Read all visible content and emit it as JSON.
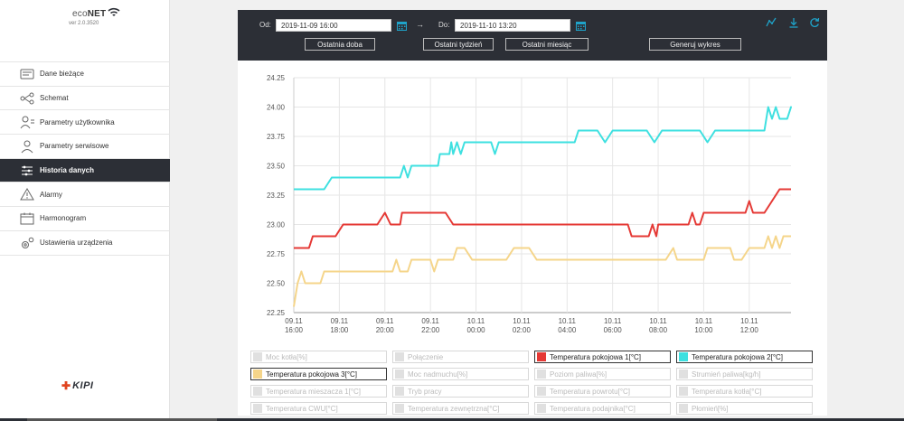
{
  "app": {
    "logo_text_eco": "eco",
    "logo_text_net": "NET",
    "version": "ver 2.0.3520",
    "vendor": "KIPI"
  },
  "sidebar": {
    "items": [
      {
        "label": "Dane bieżące",
        "icon": "current-data-icon",
        "active": false
      },
      {
        "label": "Schemat",
        "icon": "schema-icon",
        "active": false
      },
      {
        "label": "Parametry użytkownika",
        "icon": "user-params-icon",
        "active": false
      },
      {
        "label": "Parametry serwisowe",
        "icon": "service-params-icon",
        "active": false
      },
      {
        "label": "Historia danych",
        "icon": "history-icon",
        "active": true
      },
      {
        "label": "Alarmy",
        "icon": "alarm-icon",
        "active": false
      },
      {
        "label": "Harmonogram",
        "icon": "schedule-icon",
        "active": false
      },
      {
        "label": "Ustawienia urządzenia",
        "icon": "device-settings-icon",
        "active": false
      }
    ]
  },
  "toolbar": {
    "from_label": "Od:",
    "from_value": "2019-11-09 16:00",
    "arrow": "→",
    "to_label": "Do:",
    "to_value": "2019-11-10 13:20",
    "btn_last_day": "Ostatnia doba",
    "btn_last_week": "Ostatni tydzień",
    "btn_last_month": "Ostatni miesiąc",
    "btn_generate": "Generuj wykres",
    "icons": [
      "chart-line-icon",
      "download-icon",
      "refresh-icon"
    ]
  },
  "chart_data": {
    "type": "line",
    "ylim": [
      22.25,
      24.25
    ],
    "yticks": [
      "22.25",
      "22.50",
      "22.75",
      "23.00",
      "23.25",
      "23.50",
      "23.75",
      "24.00",
      "24.25"
    ],
    "xlim": [
      0,
      1310
    ],
    "xticks": [
      {
        "x": 0,
        "l1": "09.11",
        "l2": "16:00"
      },
      {
        "x": 120,
        "l1": "09.11",
        "l2": "18:00"
      },
      {
        "x": 240,
        "l1": "09.11",
        "l2": "20:00"
      },
      {
        "x": 360,
        "l1": "09.11",
        "l2": "22:00"
      },
      {
        "x": 480,
        "l1": "10.11",
        "l2": "00:00"
      },
      {
        "x": 600,
        "l1": "10.11",
        "l2": "02:00"
      },
      {
        "x": 720,
        "l1": "10.11",
        "l2": "04:00"
      },
      {
        "x": 840,
        "l1": "10.11",
        "l2": "06:00"
      },
      {
        "x": 960,
        "l1": "10.11",
        "l2": "08:00"
      },
      {
        "x": 1080,
        "l1": "10.11",
        "l2": "10:00"
      },
      {
        "x": 1200,
        "l1": "10.11",
        "l2": "12:00"
      }
    ],
    "grid": true,
    "series": [
      {
        "name": "Temperatura pokojowa 1[°C]",
        "color": "#e53935",
        "points": [
          [
            0,
            22.8
          ],
          [
            40,
            22.8
          ],
          [
            50,
            22.9
          ],
          [
            110,
            22.9
          ],
          [
            130,
            23.0
          ],
          [
            220,
            23.0
          ],
          [
            240,
            23.1
          ],
          [
            255,
            23.0
          ],
          [
            280,
            23.0
          ],
          [
            285,
            23.1
          ],
          [
            400,
            23.1
          ],
          [
            420,
            23.0
          ],
          [
            880,
            23.0
          ],
          [
            890,
            22.9
          ],
          [
            935,
            22.9
          ],
          [
            945,
            23.0
          ],
          [
            955,
            22.9
          ],
          [
            960,
            23.0
          ],
          [
            1040,
            23.0
          ],
          [
            1050,
            23.1
          ],
          [
            1060,
            23.0
          ],
          [
            1070,
            23.0
          ],
          [
            1080,
            23.1
          ],
          [
            1190,
            23.1
          ],
          [
            1200,
            23.2
          ],
          [
            1210,
            23.1
          ],
          [
            1240,
            23.1
          ],
          [
            1260,
            23.2
          ],
          [
            1280,
            23.3
          ],
          [
            1310,
            23.3
          ]
        ]
      },
      {
        "name": "Temperatura pokojowa 2[°C]",
        "color": "#3ee0e0",
        "points": [
          [
            0,
            23.3
          ],
          [
            80,
            23.3
          ],
          [
            100,
            23.4
          ],
          [
            280,
            23.4
          ],
          [
            290,
            23.5
          ],
          [
            300,
            23.4
          ],
          [
            310,
            23.5
          ],
          [
            380,
            23.5
          ],
          [
            385,
            23.6
          ],
          [
            410,
            23.6
          ],
          [
            415,
            23.7
          ],
          [
            420,
            23.6
          ],
          [
            430,
            23.7
          ],
          [
            440,
            23.6
          ],
          [
            450,
            23.7
          ],
          [
            520,
            23.7
          ],
          [
            530,
            23.6
          ],
          [
            540,
            23.7
          ],
          [
            740,
            23.7
          ],
          [
            750,
            23.8
          ],
          [
            800,
            23.8
          ],
          [
            820,
            23.7
          ],
          [
            840,
            23.8
          ],
          [
            930,
            23.8
          ],
          [
            950,
            23.7
          ],
          [
            970,
            23.8
          ],
          [
            1070,
            23.8
          ],
          [
            1090,
            23.7
          ],
          [
            1110,
            23.8
          ],
          [
            1240,
            23.8
          ],
          [
            1250,
            24.0
          ],
          [
            1260,
            23.9
          ],
          [
            1270,
            24.0
          ],
          [
            1280,
            23.9
          ],
          [
            1300,
            23.9
          ],
          [
            1310,
            24.0
          ],
          [
            1300,
            23.9
          ],
          [
            1310,
            24.0
          ]
        ]
      },
      {
        "name": "Temperatura pokojowa 3[°C]",
        "color": "#f5d58a",
        "points": [
          [
            0,
            22.3
          ],
          [
            10,
            22.5
          ],
          [
            20,
            22.6
          ],
          [
            30,
            22.5
          ],
          [
            70,
            22.5
          ],
          [
            80,
            22.6
          ],
          [
            260,
            22.6
          ],
          [
            270,
            22.7
          ],
          [
            280,
            22.6
          ],
          [
            300,
            22.6
          ],
          [
            310,
            22.7
          ],
          [
            360,
            22.7
          ],
          [
            370,
            22.6
          ],
          [
            380,
            22.7
          ],
          [
            420,
            22.7
          ],
          [
            430,
            22.8
          ],
          [
            450,
            22.8
          ],
          [
            470,
            22.7
          ],
          [
            560,
            22.7
          ],
          [
            580,
            22.8
          ],
          [
            620,
            22.8
          ],
          [
            640,
            22.7
          ],
          [
            980,
            22.7
          ],
          [
            1000,
            22.8
          ],
          [
            1010,
            22.7
          ],
          [
            1080,
            22.7
          ],
          [
            1090,
            22.8
          ],
          [
            1150,
            22.8
          ],
          [
            1160,
            22.7
          ],
          [
            1180,
            22.7
          ],
          [
            1200,
            22.8
          ],
          [
            1240,
            22.8
          ],
          [
            1250,
            22.9
          ],
          [
            1260,
            22.8
          ],
          [
            1270,
            22.9
          ],
          [
            1280,
            22.8
          ],
          [
            1290,
            22.9
          ],
          [
            1310,
            22.9
          ]
        ]
      }
    ]
  },
  "legend": {
    "items": [
      {
        "label": "Moc kotła[%]",
        "on": false,
        "color": "#e0e0e0"
      },
      {
        "label": "Połączenie",
        "on": false,
        "color": "#e0e0e0"
      },
      {
        "label": "Temperatura pokojowa 1[°C]",
        "on": true,
        "color": "#e53935"
      },
      {
        "label": "Temperatura pokojowa 2[°C]",
        "on": true,
        "color": "#3ee0e0"
      },
      {
        "label": "Temperatura pokojowa 3[°C]",
        "on": true,
        "color": "#f5d58a"
      },
      {
        "label": "Moc nadmuchu[%]",
        "on": false,
        "color": "#e0e0e0"
      },
      {
        "label": "Poziom paliwa[%]",
        "on": false,
        "color": "#e0e0e0"
      },
      {
        "label": "Strumień paliwa[kg/h]",
        "on": false,
        "color": "#e0e0e0"
      },
      {
        "label": "Temperatura mieszacza 1[°C]",
        "on": false,
        "color": "#e0e0e0"
      },
      {
        "label": "Tryb pracy",
        "on": false,
        "color": "#e0e0e0"
      },
      {
        "label": "Temperatura powrotu[°C]",
        "on": false,
        "color": "#e0e0e0"
      },
      {
        "label": "Temperatura kotła[°C]",
        "on": false,
        "color": "#e0e0e0"
      },
      {
        "label": "Temperatura CWU[°C]",
        "on": false,
        "color": "#e0e0e0"
      },
      {
        "label": "Temperatura zewnętrzna[°C]",
        "on": false,
        "color": "#e0e0e0"
      },
      {
        "label": "Temperatura podajnika[°C]",
        "on": false,
        "color": "#e0e0e0"
      },
      {
        "label": "Płomień[%]",
        "on": false,
        "color": "#e0e0e0"
      }
    ]
  }
}
